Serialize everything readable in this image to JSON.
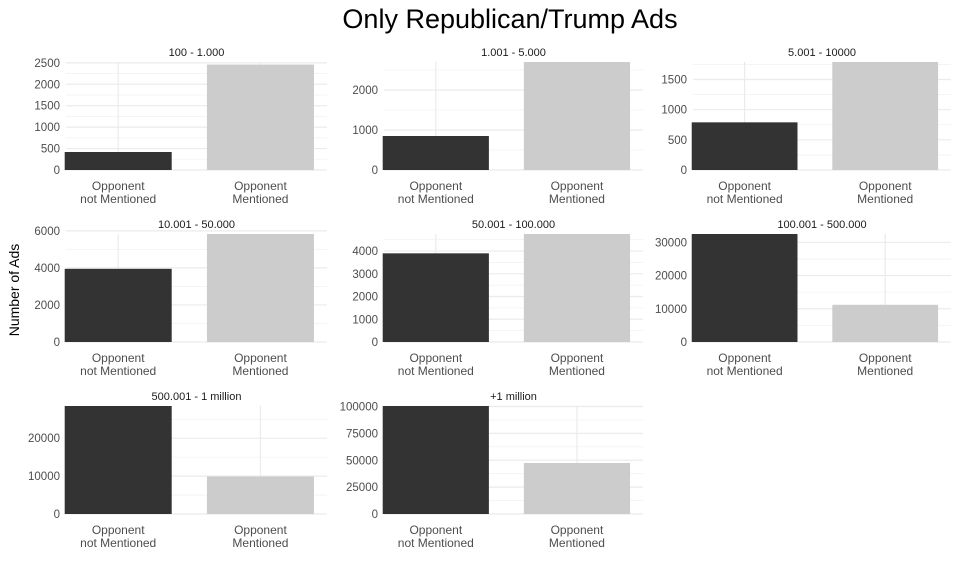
{
  "chart_data": {
    "type": "bar",
    "title": "Only Republican/Trump Ads",
    "xlabel": "",
    "ylabel": "Number of Ads",
    "categories": [
      "Opponent\nnot Mentioned",
      "Opponent\nMentioned"
    ],
    "colors": [
      "#333333",
      "#cccccc"
    ],
    "grid": true,
    "panels": [
      {
        "label": "100 - 1.000",
        "values": [
          420,
          2460
        ],
        "ylim": [
          0,
          2520
        ],
        "ticks": [
          0,
          500,
          1000,
          1500,
          2000,
          2500
        ]
      },
      {
        "label": "1.001 - 5.000",
        "values": [
          850,
          2700
        ],
        "ylim": [
          0,
          2700
        ],
        "ticks": [
          0,
          1000,
          2000
        ]
      },
      {
        "label": "5.001 - 10000",
        "values": [
          790,
          1790
        ],
        "ylim": [
          0,
          1790
        ],
        "ticks": [
          0,
          500,
          1000,
          1500
        ]
      },
      {
        "label": "10.001 - 50.000",
        "values": [
          3950,
          5830
        ],
        "ylim": [
          0,
          5830
        ],
        "ticks": [
          0,
          2000,
          4000,
          6000
        ]
      },
      {
        "label": "50.001 - 100.000",
        "values": [
          3900,
          4750
        ],
        "ylim": [
          0,
          4750
        ],
        "ticks": [
          0,
          1000,
          2000,
          3000,
          4000
        ]
      },
      {
        "label": "100.001 - 500.000",
        "values": [
          32500,
          11200
        ],
        "ylim": [
          0,
          32500
        ],
        "ticks": [
          0,
          10000,
          20000,
          30000
        ]
      },
      {
        "label": "500.001 - 1 million",
        "values": [
          28500,
          9900
        ],
        "ylim": [
          0,
          28500
        ],
        "ticks": [
          0,
          10000,
          20000
        ]
      },
      {
        "label": "+1 million",
        "values": [
          100500,
          47500
        ],
        "ylim": [
          0,
          100500
        ],
        "ticks": [
          0,
          25000,
          50000,
          75000,
          100000
        ]
      }
    ]
  }
}
